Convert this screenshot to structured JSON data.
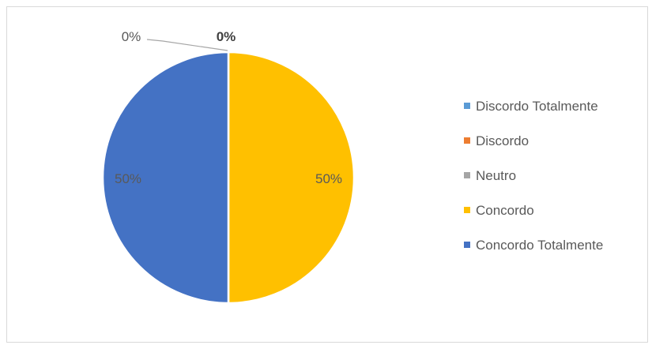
{
  "chart_data": {
    "type": "pie",
    "categories": [
      "Discordo Totalmente",
      "Discordo",
      "Neutro",
      "Concordo",
      "Concordo Totalmente"
    ],
    "values": [
      0,
      0,
      0,
      50,
      50
    ],
    "data_labels": [
      "",
      "0%",
      "0%",
      "50%",
      "50%"
    ],
    "colors": [
      "#5B9BD5",
      "#ED7D31",
      "#A5A5A5",
      "#FFC000",
      "#4472C4"
    ],
    "legend_position": "right",
    "unit": "%"
  }
}
